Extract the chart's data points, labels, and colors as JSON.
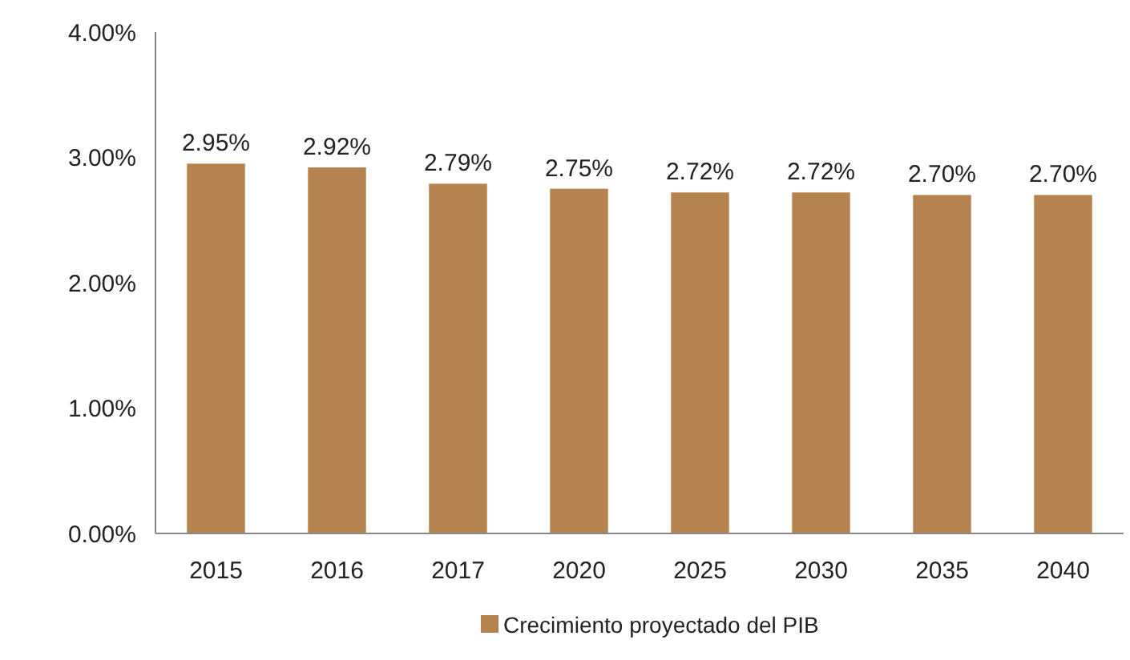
{
  "chart_data": {
    "type": "bar",
    "categories": [
      "2015",
      "2016",
      "2017",
      "2020",
      "2025",
      "2030",
      "2035",
      "2040"
    ],
    "series": [
      {
        "name": "Crecimiento proyectado del PIB",
        "color": "#b5834f",
        "values": [
          2.95,
          2.92,
          2.79,
          2.75,
          2.72,
          2.72,
          2.7,
          2.7
        ],
        "value_labels": [
          "2.95%",
          "2.92%",
          "2.79%",
          "2.75%",
          "2.72%",
          "2.72%",
          "2.70%",
          "2.70%"
        ]
      }
    ],
    "ylim": [
      0,
      4
    ],
    "yticks": [
      {
        "value": 0,
        "label": "0.00%"
      },
      {
        "value": 1,
        "label": "1.00%"
      },
      {
        "value": 2,
        "label": "2.00%"
      },
      {
        "value": 3,
        "label": "3.00%"
      },
      {
        "value": 4,
        "label": "4.00%"
      }
    ],
    "legend": "bottom"
  }
}
